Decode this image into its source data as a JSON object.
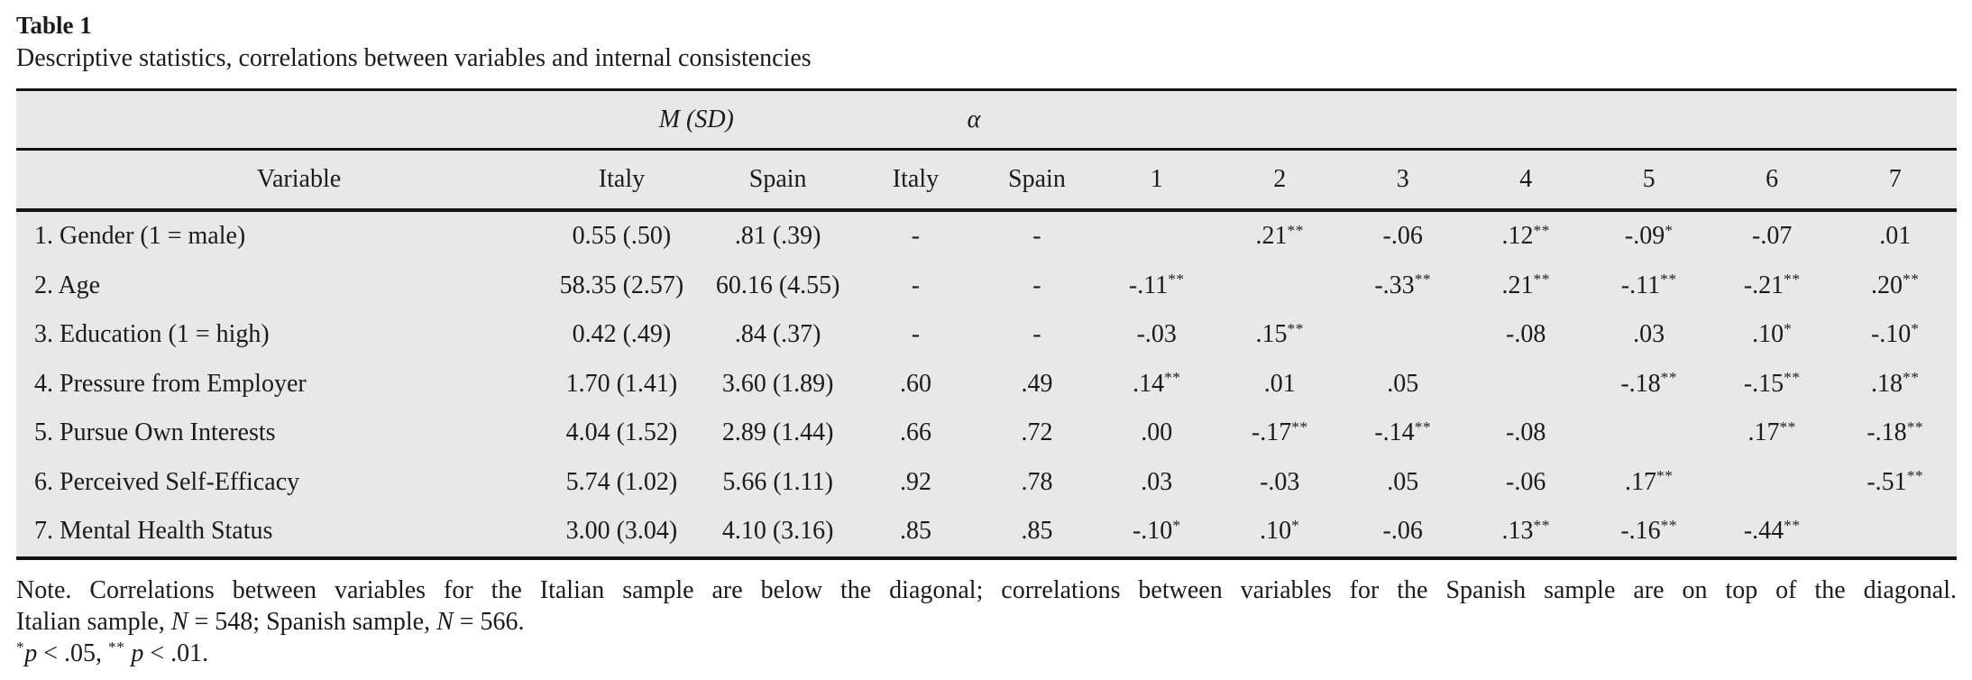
{
  "colors": {
    "table_bg": "#e8e8e8",
    "text": "#1b1b1b",
    "rule": "#141414"
  },
  "title": "Table 1",
  "caption": "Descriptive statistics, correlations between variables and internal consistencies",
  "table": {
    "group_headers": {
      "msd": "M (SD)",
      "alpha": "α"
    },
    "col_headers": {
      "variable": "Variable",
      "msd_italy": "Italy",
      "msd_spain": "Spain",
      "alpha_italy": "Italy",
      "alpha_spain": "Spain",
      "nums": [
        "1",
        "2",
        "3",
        "4",
        "5",
        "6",
        "7"
      ]
    },
    "rows": [
      {
        "variable": "1. Gender (1 = male)",
        "msd_italy": "0.55 (.50)",
        "msd_spain": ".81 (.39)",
        "alpha_italy": "-",
        "alpha_spain": "-",
        "corr": [
          "",
          ".21**",
          "-.06",
          ".12**",
          "-.09*",
          "-.07",
          ".01"
        ]
      },
      {
        "variable": "2. Age",
        "msd_italy": "58.35 (2.57)",
        "msd_spain": "60.16 (4.55)",
        "alpha_italy": "-",
        "alpha_spain": "-",
        "corr": [
          "-.11**",
          "",
          "-.33**",
          ".21**",
          "-.11**",
          "-.21**",
          ".20**"
        ]
      },
      {
        "variable": "3. Education (1 = high)",
        "msd_italy": "0.42 (.49)",
        "msd_spain": ".84 (.37)",
        "alpha_italy": "-",
        "alpha_spain": "-",
        "corr": [
          "-.03",
          ".15**",
          "",
          "-.08",
          ".03",
          ".10*",
          "-.10*"
        ]
      },
      {
        "variable": "4. Pressure from Employer",
        "msd_italy": "1.70 (1.41)",
        "msd_spain": "3.60 (1.89)",
        "alpha_italy": ".60",
        "alpha_spain": ".49",
        "corr": [
          ".14**",
          ".01",
          ".05",
          "",
          "-.18**",
          "-.15**",
          ".18**"
        ]
      },
      {
        "variable": "5. Pursue Own Interests",
        "msd_italy": "4.04 (1.52)",
        "msd_spain": "2.89 (1.44)",
        "alpha_italy": ".66",
        "alpha_spain": ".72",
        "corr": [
          ".00",
          "-.17**",
          "-.14**",
          "-.08",
          "",
          ".17**",
          "-.18**"
        ]
      },
      {
        "variable": "6. Perceived Self-Efficacy",
        "msd_italy": "5.74 (1.02)",
        "msd_spain": "5.66 (1.11)",
        "alpha_italy": ".92",
        "alpha_spain": ".78",
        "corr": [
          ".03",
          "-.03",
          ".05",
          "-.06",
          ".17**",
          "",
          "-.51**"
        ]
      },
      {
        "variable": "7. Mental Health Status",
        "msd_italy": "3.00 (3.04)",
        "msd_spain": "4.10 (3.16)",
        "alpha_italy": ".85",
        "alpha_spain": ".85",
        "corr": [
          "-.10*",
          ".10*",
          "-.06",
          ".13**",
          "-.16**",
          "-.44**",
          ""
        ]
      }
    ]
  },
  "notes": {
    "line1": "Note. Correlations between variables for the Italian sample are below the diagonal; correlations between variables for the Spanish sample are on top of the diagonal.",
    "line2": {
      "a": "Italian sample, ",
      "n1": "N",
      "b": " = 548; Spanish sample, ",
      "n2": "N",
      "c": " = 566."
    },
    "line3": {
      "star1": "*",
      "p1": "p",
      "a": " < .05, ",
      "star2": "**",
      "sp": " ",
      "p2": "p",
      "b": " < .01."
    }
  }
}
